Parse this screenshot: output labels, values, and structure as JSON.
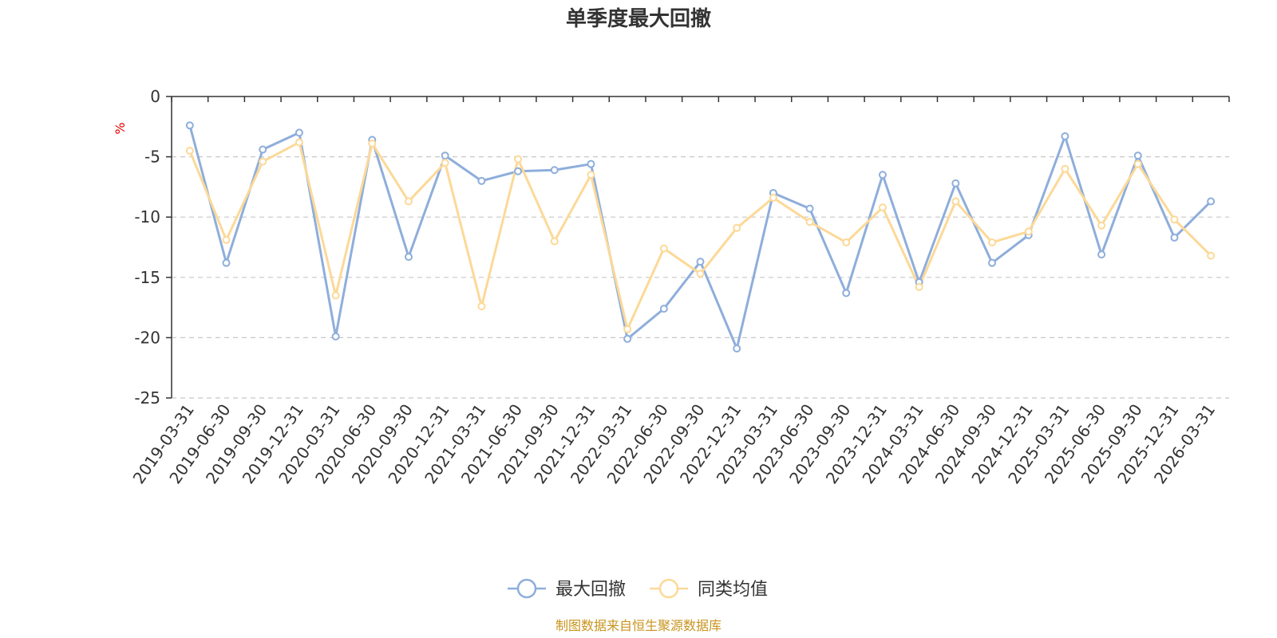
{
  "chart_data": {
    "type": "line",
    "title": "单季度最大回撤",
    "ylabel": "%",
    "xlabel": "",
    "ylim": [
      -25,
      0
    ],
    "yticks": [
      0,
      -5,
      -10,
      -15,
      -20,
      -25
    ],
    "grid": true,
    "legend_position": "bottom-center",
    "categories": [
      "2019-03-31",
      "2019-06-30",
      "2019-09-30",
      "2019-12-31",
      "2020-03-31",
      "2020-06-30",
      "2020-09-30",
      "2020-12-31",
      "2021-03-31",
      "2021-06-30",
      "2021-09-30",
      "2021-12-31",
      "2022-03-31",
      "2022-06-30",
      "2022-09-30",
      "2022-12-31",
      "2023-03-31",
      "2023-06-30",
      "2023-09-30",
      "2023-12-31",
      "2024-03-31",
      "2024-06-30",
      "2024-09-30",
      "2024-12-31",
      "2025-03-31",
      "2025-06-30",
      "2025-09-30",
      "2025-12-31",
      "2026-03-31"
    ],
    "series": [
      {
        "name": "最大回撤",
        "color": "#8eaedb",
        "values": [
          -2.4,
          -13.8,
          -4.4,
          -3.0,
          -19.9,
          -3.6,
          -13.3,
          -4.9,
          -7.0,
          -6.2,
          -6.1,
          -5.6,
          -20.1,
          -17.6,
          -13.7,
          -20.9,
          -8.0,
          -9.3,
          -16.3,
          -6.5,
          -15.4,
          -7.2,
          -13.8,
          -11.5,
          -3.3,
          -13.1,
          -4.9,
          -11.7,
          -8.7
        ]
      },
      {
        "name": "同类均值",
        "color": "#fcd998",
        "values": [
          -4.5,
          -11.9,
          -5.4,
          -3.8,
          -16.5,
          -3.9,
          -8.7,
          -5.5,
          -17.4,
          -5.2,
          -12.0,
          -6.5,
          -19.3,
          -12.6,
          -14.7,
          -10.9,
          -8.4,
          -10.4,
          -12.1,
          -9.2,
          -15.8,
          -8.7,
          -12.1,
          -11.2,
          -6.0,
          -10.7,
          -5.6,
          -10.2,
          -13.2
        ]
      }
    ]
  },
  "footer": {
    "source": "制图数据来自恒生聚源数据库"
  }
}
